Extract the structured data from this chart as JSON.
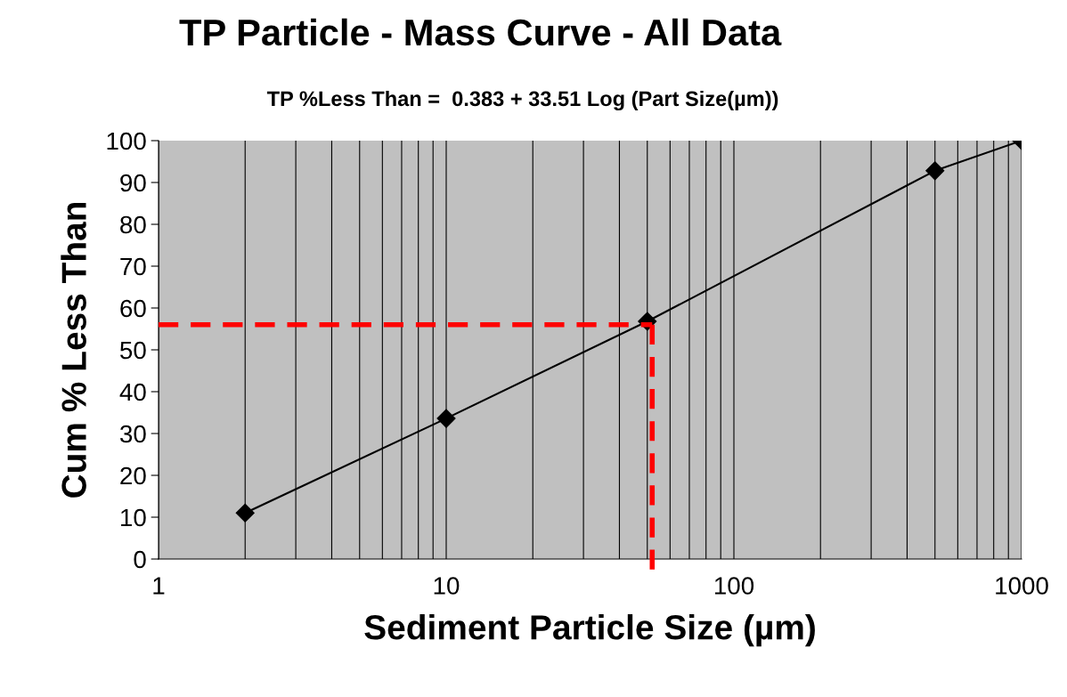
{
  "chart_data": {
    "type": "line",
    "title": "TP Particle - Mass Curve - All Data",
    "subtitle": "TP %Less Than =  0.383 + 33.51 Log (Part Size(µm))",
    "xlabel": "Sediment Particle Size (µm)",
    "ylabel": "Cum % Less Than",
    "x": [
      2,
      10,
      50,
      500,
      1000
    ],
    "series": [
      {
        "color": "#000000",
        "values": [
          11,
          33.6,
          56.8,
          92.8,
          100
        ]
      }
    ],
    "log": "x",
    "xlim": [
      1,
      1000
    ],
    "xticks": [
      1,
      10,
      100,
      1000
    ],
    "ylim": [
      0,
      100
    ],
    "yticks": [
      0,
      10,
      20,
      30,
      40,
      50,
      60,
      70,
      80,
      90,
      100
    ],
    "grid": "x",
    "marker": "diamond",
    "line_style": "solid",
    "ref_lines": [
      {
        "axis": "y",
        "value": 56,
        "color": "#ff0000",
        "line_style": "dashed"
      },
      {
        "axis": "x",
        "value": 52,
        "color": "#ff0000",
        "line_style": "dashed"
      }
    ]
  }
}
